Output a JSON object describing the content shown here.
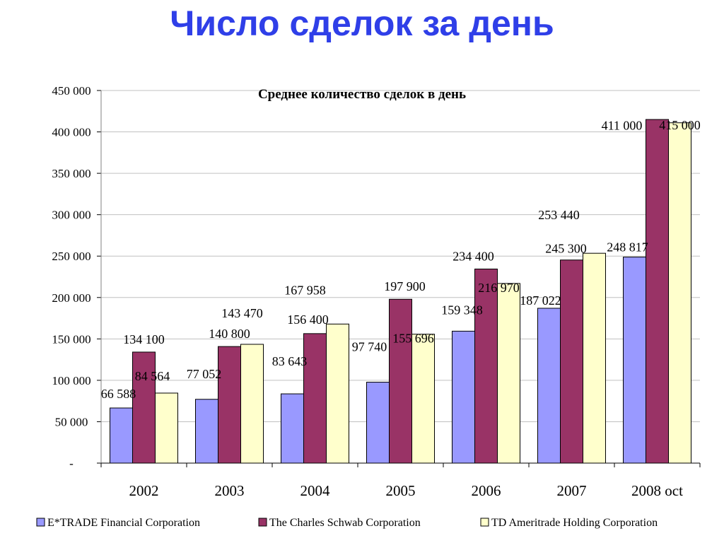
{
  "slide": {
    "title": "Число сделок за день"
  },
  "colors": {
    "etrade": "#9999ff",
    "schwab": "#993366",
    "td": "#ffffcc",
    "bar_stroke": "#000000",
    "grid": "#c0c0c0"
  },
  "chart_data": {
    "type": "bar",
    "title": "Среднее количество сделок в день",
    "xlabel": "",
    "ylabel": "",
    "ylim": [
      0,
      450000
    ],
    "y_ticks": [
      0,
      50000,
      100000,
      150000,
      200000,
      250000,
      300000,
      350000,
      400000,
      450000
    ],
    "y_tick_labels": [
      "-",
      "50 000",
      "100 000",
      "150 000",
      "200 000",
      "250 000",
      "300 000",
      "350 000",
      "400 000",
      "450 000"
    ],
    "categories": [
      "2002",
      "2003",
      "2004",
      "2005",
      "2006",
      "2007",
      "2008 oct"
    ],
    "grid": true,
    "legend_position": "bottom",
    "series": [
      {
        "name": "E*TRADE Financial Corporation",
        "color": "#9999ff",
        "values": [
          66588,
          77052,
          83643,
          97740,
          159348,
          187022,
          248817
        ],
        "labels": [
          "66 588",
          "77 052",
          "83 643",
          "97 740",
          "159 348",
          "187 022",
          "248 817"
        ]
      },
      {
        "name": "The Charles Schwab Corporation",
        "color": "#993366",
        "values": [
          134100,
          140800,
          156400,
          197900,
          234400,
          245300,
          415000
        ],
        "labels": [
          "134 100",
          "140 800",
          "156 400",
          "197 900",
          "234 400",
          "245 300",
          "415 000"
        ]
      },
      {
        "name": "TD Ameritrade Holding Corporation",
        "color": "#ffffcc",
        "values": [
          84564,
          143470,
          167958,
          155696,
          216970,
          253440,
          411000
        ],
        "labels": [
          "84 564",
          "143 470",
          "167 958",
          "155 696",
          "216 970",
          "253 440",
          "411 000"
        ]
      }
    ]
  }
}
